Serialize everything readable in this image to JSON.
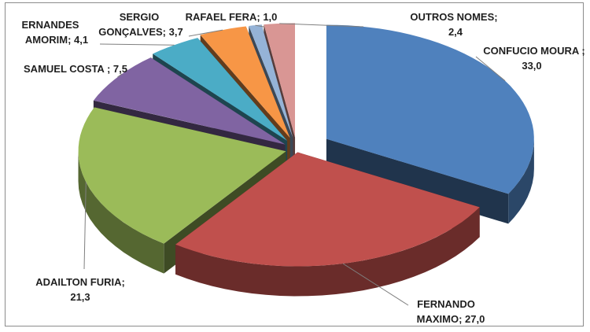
{
  "chart_data": {
    "type": "pie",
    "style": "3d-exploded",
    "legend": "none",
    "slices": [
      {
        "name": "CONFUCIO MOURA",
        "value": 33.0,
        "label": "CONFUCIO MOURA ;",
        "value_text": "33,0",
        "color": "#4F81BD"
      },
      {
        "name": "FERNANDO MAXIMO",
        "value": 27.0,
        "label": "FERNANDO",
        "label2": "MAXIMO; 27,0",
        "color": "#C0504D"
      },
      {
        "name": "ADAILTON FURIA",
        "value": 21.3,
        "label": "ADAILTON FURIA;",
        "value_text": "21,3",
        "color": "#9BBB59"
      },
      {
        "name": "SAMUEL COSTA",
        "value": 7.5,
        "label": "SAMUEL COSTA ; 7,5",
        "color": "#8064A2"
      },
      {
        "name": "ERNANDES AMORIM",
        "value": 4.1,
        "label": "ERNANDES",
        "label2": "AMORIM; 4,1",
        "color": "#4BACC6"
      },
      {
        "name": "SERGIO GONÇALVES",
        "value": 3.7,
        "label": "SERGIO",
        "label2": "GONÇALVES; 3,7",
        "color": "#F79646"
      },
      {
        "name": "RAFAEL FERA",
        "value": 1.0,
        "label": "RAFAEL FERA; 1,0",
        "color": "#95B3D7"
      },
      {
        "name": "OUTROS NOMES",
        "value": 2.4,
        "label": "OUTROS NOMES;",
        "value_text": "2,4",
        "color": "#D99694"
      }
    ]
  }
}
